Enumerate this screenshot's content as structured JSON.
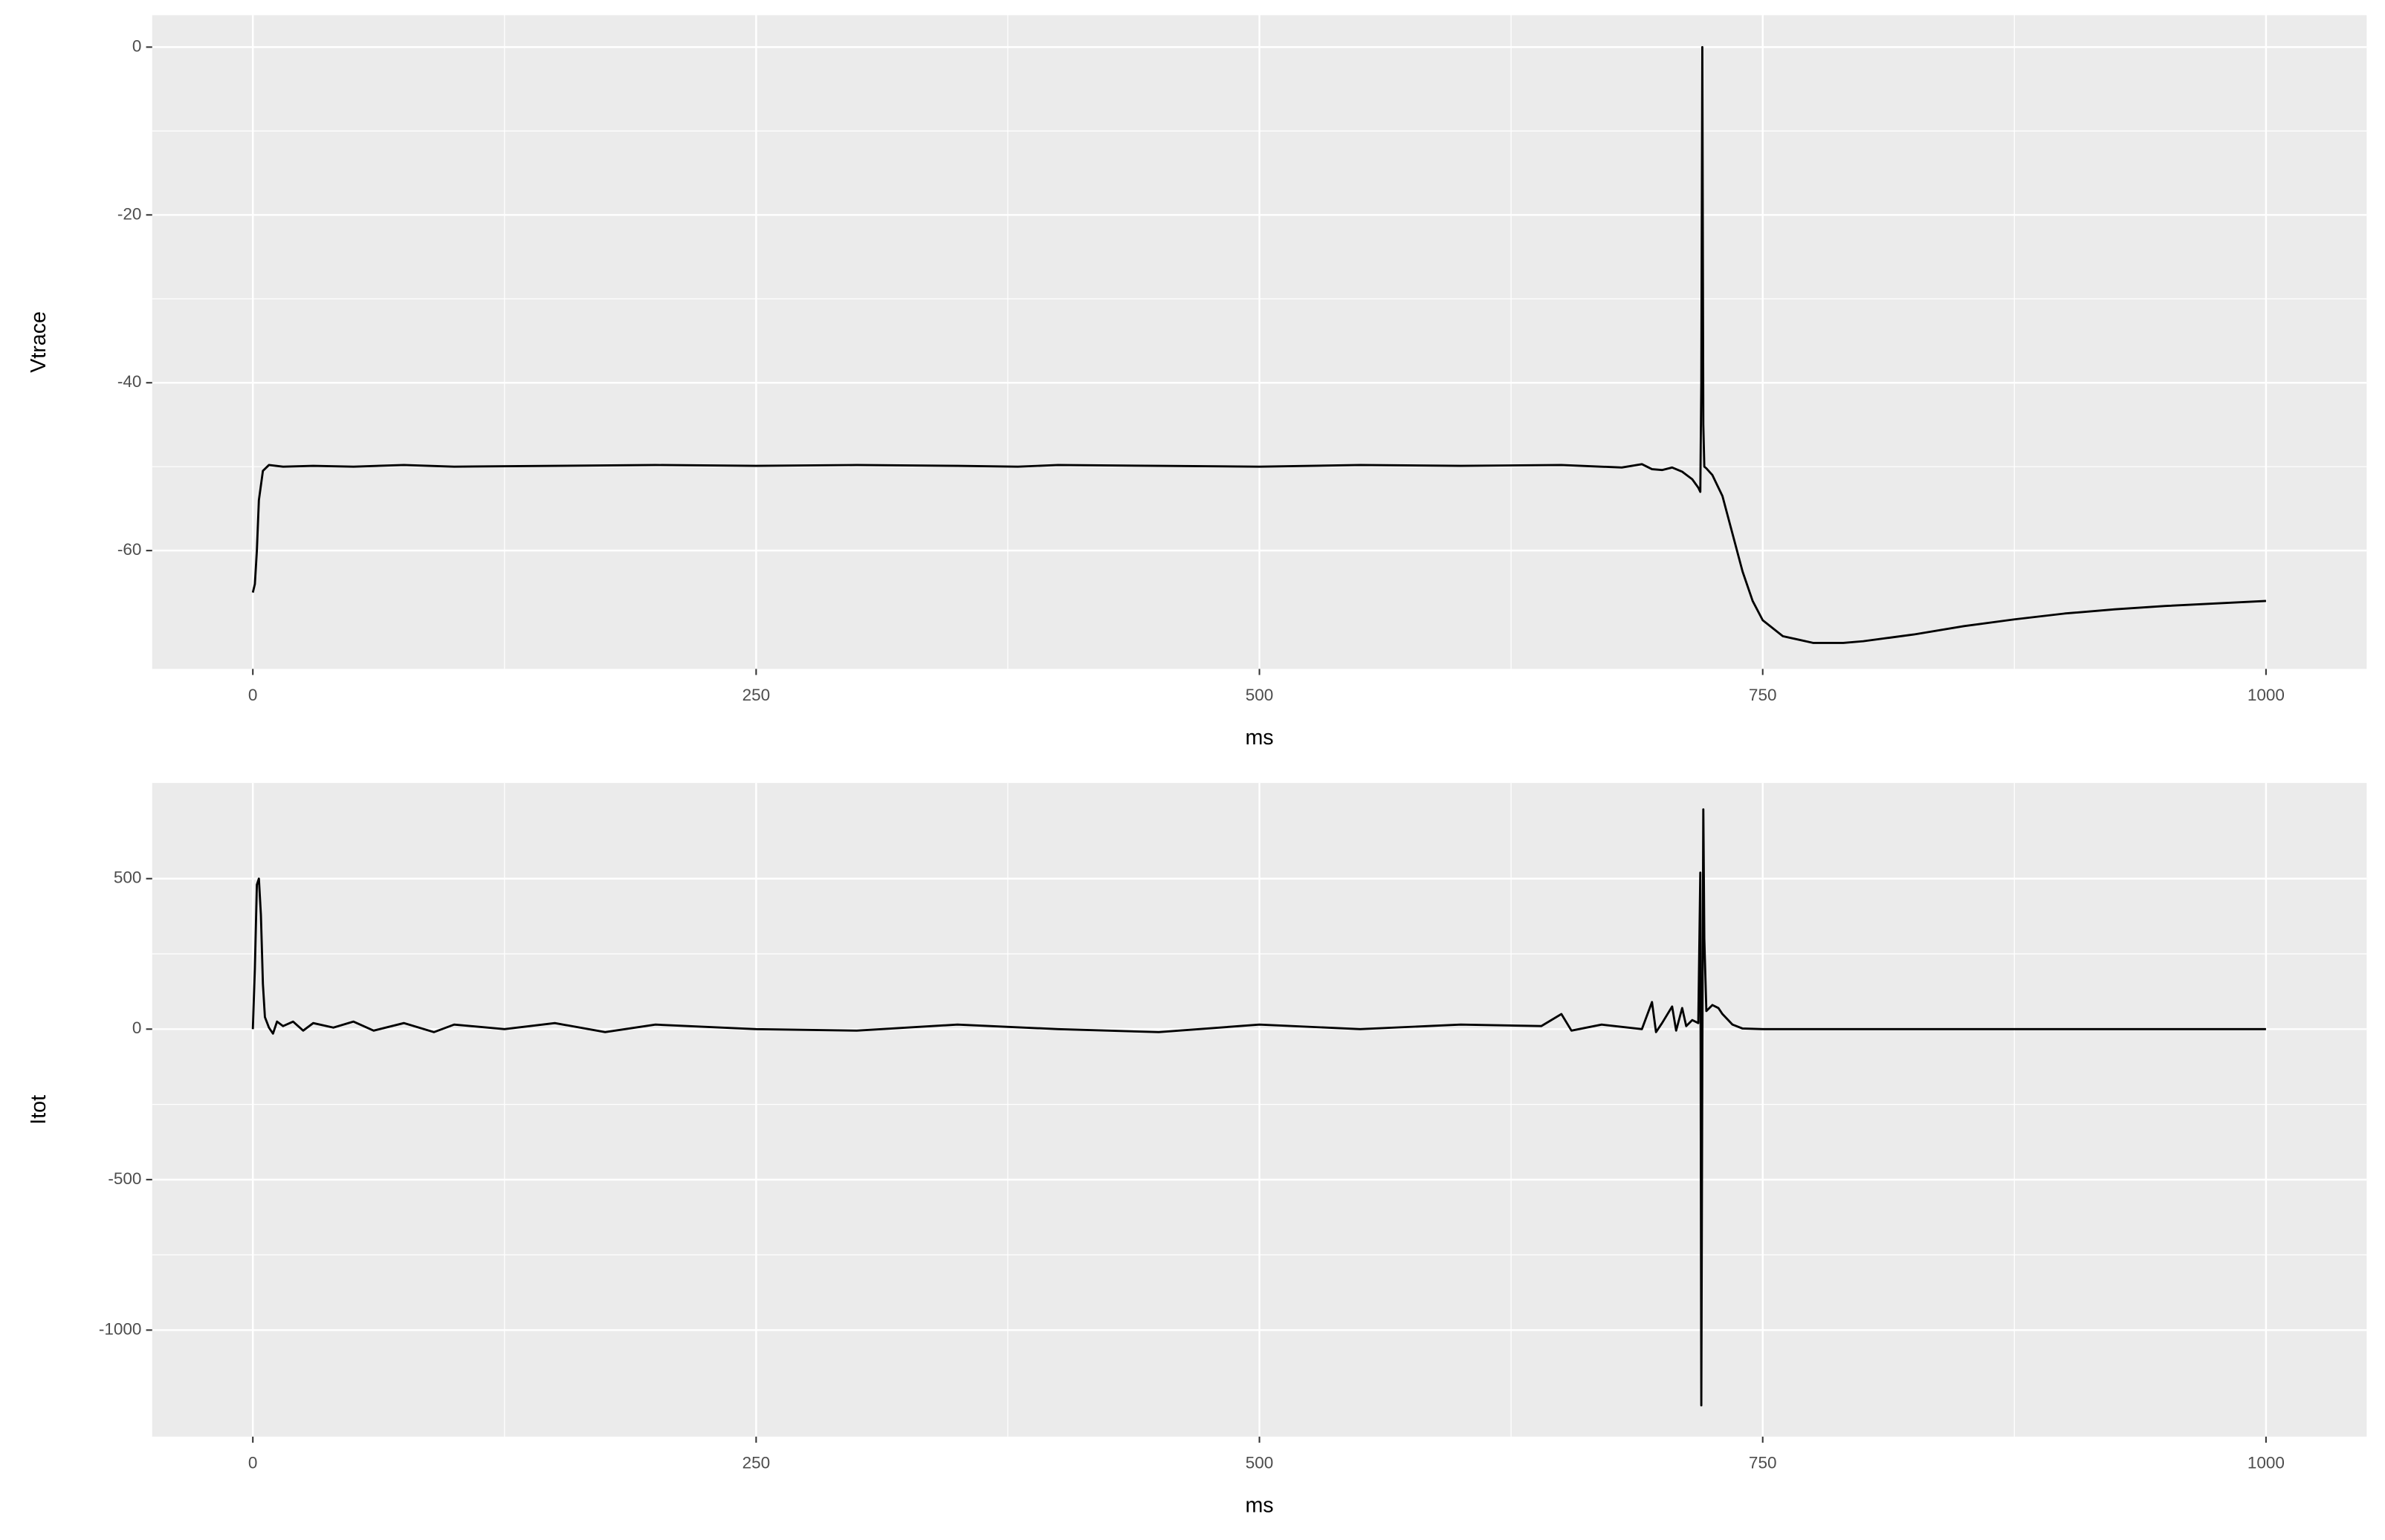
{
  "chart_data": [
    {
      "type": "line",
      "x_label": "ms",
      "y_label": "Vtrace",
      "color": "#000000",
      "grid": true,
      "xlim": [
        -50,
        1050
      ],
      "ylim": [
        -74.1,
        3.8
      ],
      "xticks": [
        0,
        250,
        500,
        750,
        1000
      ],
      "yticks": [
        0,
        -20,
        -40,
        -60
      ],
      "x": [
        0,
        1,
        2,
        3,
        5,
        8,
        15,
        30,
        50,
        75,
        100,
        150,
        200,
        250,
        300,
        350,
        380,
        400,
        450,
        500,
        550,
        600,
        650,
        680,
        690,
        695,
        700,
        705,
        710,
        715,
        718,
        719,
        719.5,
        720,
        720.5,
        721,
        722,
        725,
        730,
        735,
        740,
        745,
        750,
        760,
        775,
        790,
        800,
        825,
        850,
        875,
        900,
        925,
        950,
        975,
        1000
      ],
      "values": [
        -65,
        -64,
        -60,
        -54,
        -50.5,
        -49.8,
        -50,
        -49.9,
        -50,
        -49.8,
        -50,
        -49.9,
        -49.8,
        -49.9,
        -49.8,
        -49.9,
        -50,
        -49.8,
        -49.9,
        -50,
        -49.8,
        -49.9,
        -49.8,
        -50.1,
        -49.7,
        -50.3,
        -50.4,
        -50.1,
        -50.6,
        -51.5,
        -52.5,
        -53,
        -40,
        0,
        -45,
        -50,
        -50.2,
        -51,
        -53.5,
        -58,
        -62.5,
        -66,
        -68.3,
        -70.2,
        -71,
        -71,
        -70.8,
        -70,
        -69,
        -68.2,
        -67.5,
        -67,
        -66.6,
        -66.3,
        -66
      ]
    },
    {
      "type": "line",
      "x_label": "ms",
      "y_label": "Itot",
      "color": "#000000",
      "grid": true,
      "xlim": [
        -50,
        1050
      ],
      "ylim": [
        -1354,
        818
      ],
      "xticks": [
        0,
        250,
        500,
        750,
        1000
      ],
      "yticks": [
        500,
        0,
        -500,
        -1000
      ],
      "x": [
        0,
        1,
        2,
        3,
        4,
        5,
        6,
        8,
        10,
        12,
        15,
        20,
        25,
        30,
        40,
        50,
        60,
        75,
        90,
        100,
        125,
        150,
        175,
        200,
        250,
        300,
        350,
        400,
        450,
        500,
        550,
        600,
        640,
        650,
        655,
        670,
        690,
        695,
        697,
        700,
        705,
        707,
        710,
        712,
        715,
        718,
        719,
        719.5,
        720,
        720.5,
        721,
        722,
        725,
        728,
        730,
        735,
        740,
        750,
        1000
      ],
      "values": [
        0,
        200,
        480,
        500,
        380,
        150,
        40,
        5,
        -15,
        25,
        10,
        25,
        -5,
        20,
        5,
        25,
        -5,
        20,
        -10,
        15,
        0,
        20,
        -10,
        15,
        0,
        -5,
        15,
        0,
        -10,
        15,
        0,
        15,
        10,
        50,
        -5,
        15,
        0,
        90,
        -10,
        20,
        75,
        -5,
        70,
        10,
        30,
        20,
        520,
        -1250,
        -100,
        730,
        300,
        60,
        80,
        70,
        50,
        15,
        2,
        0,
        0
      ]
    }
  ]
}
